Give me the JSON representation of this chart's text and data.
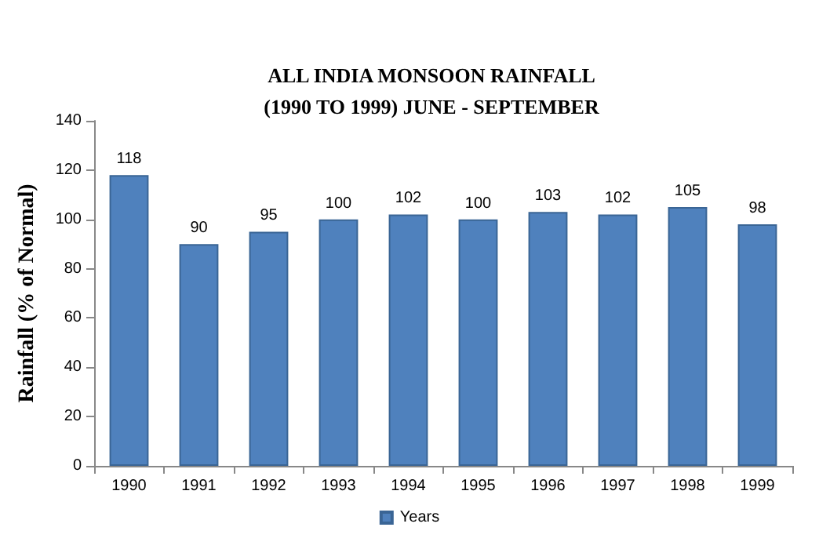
{
  "chart_data": {
    "type": "bar",
    "title": "ALL INDIA MONSOON RAINFALL\n(1990 TO 1999) JUNE - SEPTEMBER",
    "ylabel": "Rainfall (% of Normal)",
    "categories": [
      "1990",
      "1991",
      "1992",
      "1993",
      "1994",
      "1995",
      "1996",
      "1997",
      "1998",
      "1999"
    ],
    "series": [
      {
        "name": "Years",
        "color": "#4f81bd",
        "values": [
          118,
          90,
          95,
          100,
          102,
          100,
          103,
          102,
          105,
          98
        ]
      }
    ],
    "ylim": [
      0,
      140
    ],
    "yticks": [
      0,
      20,
      40,
      60,
      80,
      100,
      120,
      140
    ],
    "data_labels": true,
    "legend": "bottom",
    "grid": false
  }
}
